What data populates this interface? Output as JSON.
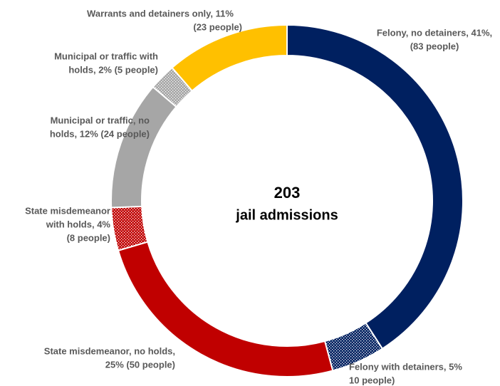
{
  "chart_data": {
    "type": "donut",
    "categories": [
      "Felony, no detainers",
      "Felony with detainers",
      "State misdemeanor, no holds",
      "State misdemeanor with holds",
      "Municipal or traffic, no holds",
      "Municipal or traffic with holds",
      "Warrants and detainers only"
    ],
    "values": [
      83,
      10,
      50,
      8,
      24,
      5,
      23
    ],
    "value_labels": [
      [
        "Felony, no detainers, 41%,",
        "(83 people)"
      ],
      [
        "Felony with detainers, 5%",
        "10 people)"
      ],
      [
        "State misdemeanor, no holds,",
        "25% (50 people)"
      ],
      [
        "State misdemeanor",
        "with holds, 4%",
        "(8 people)"
      ],
      [
        "Municipal or traffic, no",
        "holds, 12% (24 people)"
      ],
      [
        "Municipal or traffic with",
        "holds, 2% (5 people)"
      ],
      [
        "Warrants and detainers only, 11%",
        "(23 people)"
      ]
    ],
    "colors": [
      "#002060",
      "#002060",
      "#c00000",
      "#c00000",
      "#a6a6a6",
      "#a6a6a6",
      "#ffc000"
    ],
    "patterns": [
      null,
      "dots",
      null,
      "dots",
      null,
      "dots",
      null
    ],
    "center_value": "203",
    "center_label": "jail admissions"
  }
}
